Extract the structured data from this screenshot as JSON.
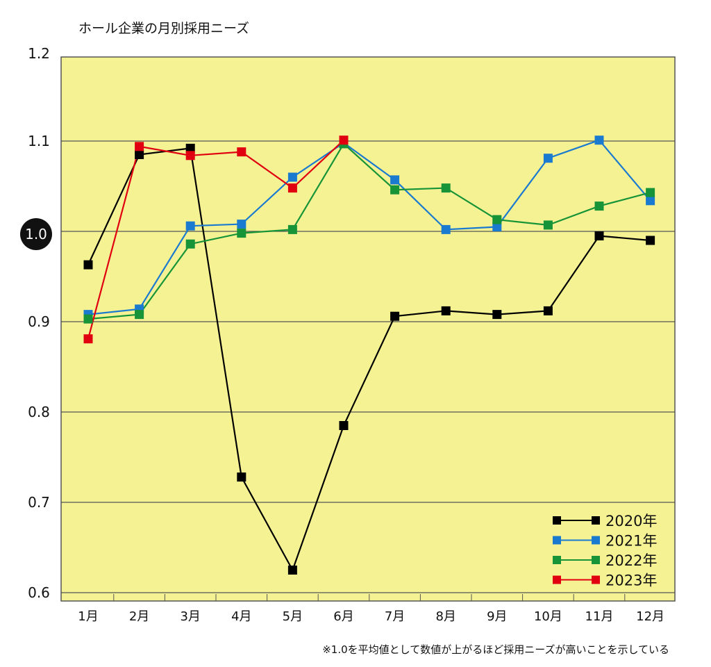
{
  "chart_data": {
    "type": "line",
    "title": "ホール企業の月別採用ニーズ",
    "xlabel": "",
    "ylabel": "",
    "ylim": [
      0.6,
      1.2
    ],
    "yticks": [
      "0.6",
      "0.7",
      "0.8",
      "0.9",
      "1.0",
      "1.1",
      "1.2"
    ],
    "highlight_tick": "1.0",
    "grid": true,
    "legend_position": "bottom-right",
    "categories": [
      "1月",
      "2月",
      "3月",
      "4月",
      "5月",
      "6月",
      "7月",
      "8月",
      "9月",
      "10月",
      "11月",
      "12月"
    ],
    "series": [
      {
        "name": "2020年",
        "color": "#000000",
        "values": [
          0.963,
          1.085,
          1.092,
          0.728,
          0.625,
          0.785,
          0.906,
          0.912,
          0.908,
          0.912,
          0.995,
          0.99
        ]
      },
      {
        "name": "2021年",
        "color": "#1a7ad0",
        "values": [
          0.908,
          0.914,
          1.006,
          1.008,
          1.06,
          1.098,
          1.057,
          1.002,
          1.005,
          1.081,
          1.101,
          1.034
        ]
      },
      {
        "name": "2022年",
        "color": "#169437",
        "values": [
          0.903,
          0.908,
          0.986,
          0.998,
          1.002,
          1.097,
          1.046,
          1.048,
          1.013,
          1.007,
          1.028,
          1.043
        ]
      },
      {
        "name": "2023年",
        "color": "#e0000f",
        "values": [
          0.881,
          1.094,
          1.084,
          1.088,
          1.048,
          1.101,
          null,
          null,
          null,
          null,
          null,
          null
        ]
      }
    ],
    "plot_bg": "#f5f293",
    "footnote": "※1.0を平均値として数値が上がるほど採用ニーズが高いことを示している"
  }
}
